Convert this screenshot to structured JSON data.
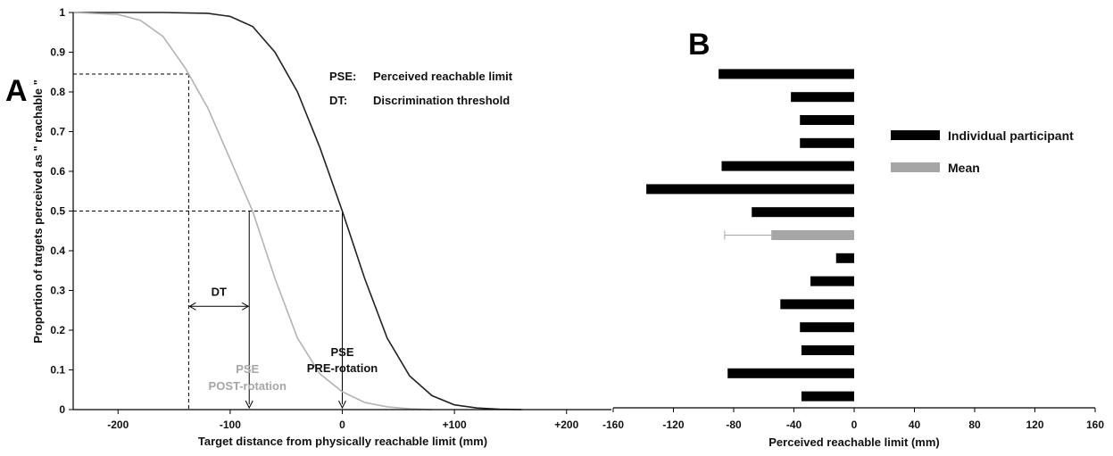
{
  "panel_a_letter": "A",
  "panel_b_letter": "B",
  "chart_data": [
    {
      "type": "line",
      "xlabel": "Target distance from physically reachable limit (mm)",
      "ylabel": "Proportion of targets perceived as \" reachable \"",
      "xlim": [
        -240,
        240
      ],
      "ylim": [
        0,
        1
      ],
      "x_ticks": [
        -200,
        -100,
        0,
        100,
        200
      ],
      "x_tick_labels": [
        "-200",
        "-100",
        "0",
        "+100",
        "+200"
      ],
      "y_ticks": [
        0,
        0.1,
        0.2,
        0.3,
        0.4,
        0.5,
        0.6,
        0.7,
        0.8,
        0.9,
        1
      ],
      "y_tick_labels": [
        "0",
        "0.1",
        "0.2",
        "0.3",
        "0.4",
        "0.5",
        "0.6",
        "0.7",
        "0.8",
        "0.9",
        "1"
      ],
      "series": [
        {
          "color": "#222222",
          "x": [
            -240,
            -200,
            -160,
            -120,
            -100,
            -80,
            -60,
            -40,
            -20,
            0,
            20,
            40,
            60,
            80,
            100,
            120,
            140,
            160
          ],
          "y": [
            1,
            1,
            1,
            0.998,
            0.99,
            0.965,
            0.9,
            0.8,
            0.66,
            0.5,
            0.33,
            0.18,
            0.085,
            0.035,
            0.012,
            0.004,
            0.001,
            0
          ]
        },
        {
          "color": "#b3b3b3",
          "x": [
            -240,
            -200,
            -180,
            -160,
            -140,
            -120,
            -100,
            -80,
            -60,
            -40,
            -20,
            0,
            20,
            40,
            60,
            80
          ],
          "y": [
            1,
            0.995,
            0.98,
            0.94,
            0.86,
            0.76,
            0.63,
            0.5,
            0.33,
            0.18,
            0.09,
            0.045,
            0.018,
            0.007,
            0.002,
            0
          ]
        }
      ],
      "annotations": {
        "legend_line1_key": "PSE:",
        "legend_line1_text": "Perceived reachable limit",
        "legend_line2_key": "DT:",
        "legend_line2_text": "Discrimination threshold",
        "dt_label": "DT",
        "pse_post_line1": "PSE",
        "pse_post_line2": "POST-rotation",
        "pse_pre_line1": "PSE",
        "pse_pre_line2": "PRE-rotation"
      },
      "reference_lines": {
        "upper_y": 0.845,
        "upper_x": -137,
        "pse_y": 0.5,
        "pse_pre_x": 0,
        "pse_post_x": -83,
        "dt_y": 0.26,
        "dt_from_x": -137,
        "dt_to_x": -83
      }
    },
    {
      "type": "bar",
      "orientation": "horizontal",
      "xlabel": "Perceived reachable limit (mm)",
      "ylabel": "",
      "xlim": [
        -160,
        160
      ],
      "x_ticks": [
        -160,
        -120,
        -80,
        -40,
        0,
        40,
        80,
        120,
        160
      ],
      "x_tick_labels": [
        "-160",
        "-120",
        "-80",
        "-40",
        "0",
        "40",
        "80",
        "120",
        "160"
      ],
      "legend": [
        {
          "name": "Individual participant",
          "color": "#000000"
        },
        {
          "name": "Mean",
          "color": "#a6a6a6"
        }
      ],
      "legend_placement": "top-right",
      "bars": [
        {
          "value": -90,
          "kind": "individual"
        },
        {
          "value": -42,
          "kind": "individual"
        },
        {
          "value": -36,
          "kind": "individual"
        },
        {
          "value": -36,
          "kind": "individual"
        },
        {
          "value": -88,
          "kind": "individual"
        },
        {
          "value": -138,
          "kind": "individual"
        },
        {
          "value": -68,
          "kind": "individual"
        },
        {
          "value": -55,
          "kind": "mean",
          "error_low": -86
        },
        {
          "value": -12,
          "kind": "individual"
        },
        {
          "value": -29,
          "kind": "individual"
        },
        {
          "value": -49,
          "kind": "individual"
        },
        {
          "value": -36,
          "kind": "individual"
        },
        {
          "value": -35,
          "kind": "individual"
        },
        {
          "value": -84,
          "kind": "individual"
        },
        {
          "value": -35,
          "kind": "individual"
        }
      ]
    }
  ]
}
